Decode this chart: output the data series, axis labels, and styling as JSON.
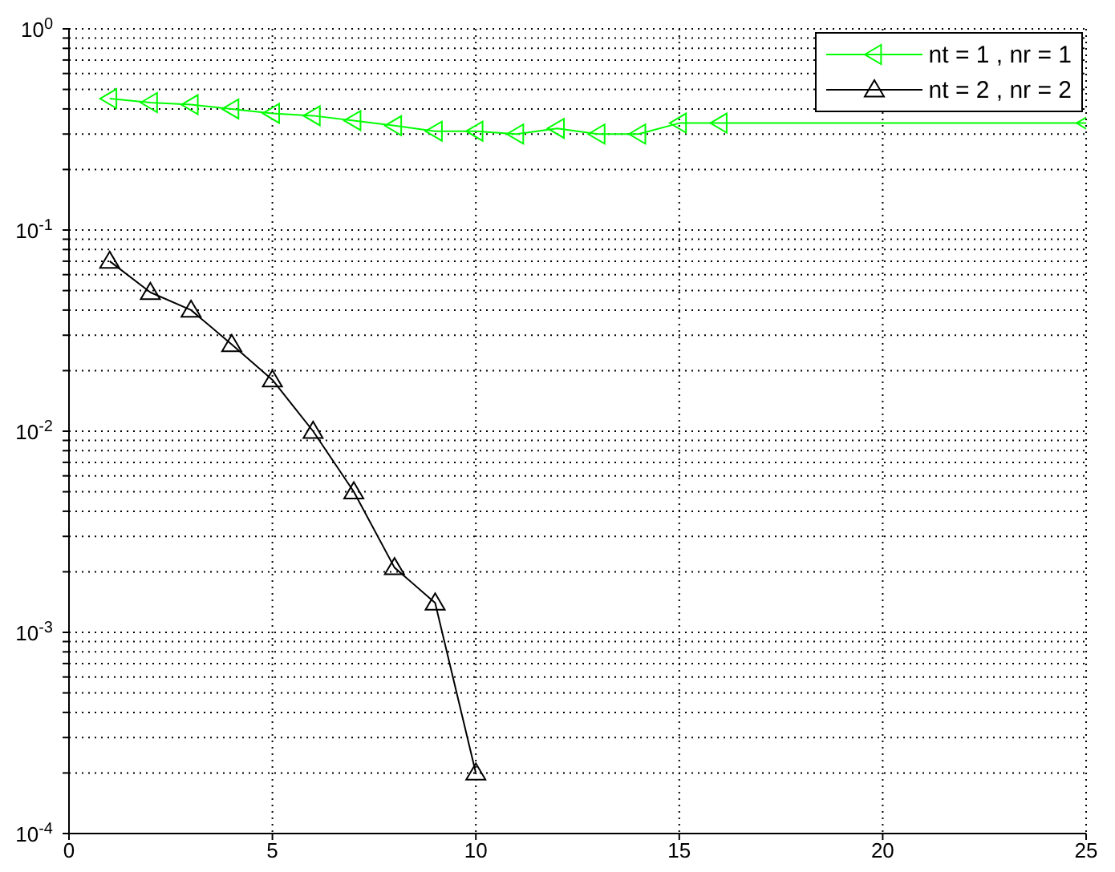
{
  "chart_data": {
    "type": "line",
    "x": [
      1,
      2,
      3,
      4,
      5,
      6,
      7,
      8,
      9,
      10,
      11,
      12,
      13,
      14,
      15,
      16,
      17,
      18,
      19,
      20,
      21,
      22,
      23,
      24,
      25
    ],
    "series": [
      {
        "name": "nt = 1 , nr = 1",
        "color": "#00ff00",
        "marker": "triangle-left",
        "values": [
          0.45,
          0.43,
          0.42,
          0.4,
          0.38,
          0.37,
          0.35,
          0.33,
          0.31,
          0.31,
          0.3,
          0.32,
          0.3,
          0.3,
          0.34,
          0.34,
          null,
          null,
          null,
          null,
          null,
          null,
          null,
          null,
          0.34
        ]
      },
      {
        "name": "nt = 2 , nr = 2",
        "color": "#000000",
        "marker": "triangle",
        "values": [
          0.07,
          0.049,
          0.04,
          0.027,
          0.018,
          0.01,
          0.005,
          0.0021,
          0.0014,
          0.0002,
          null,
          null,
          null,
          null,
          null,
          null,
          null,
          null,
          null,
          null,
          null,
          null,
          null,
          null,
          null
        ]
      }
    ],
    "log": "y",
    "xlim": [
      0,
      25
    ],
    "xticks": [
      0,
      5,
      10,
      15,
      20,
      25
    ],
    "ylim": [
      0.0001,
      1
    ],
    "yticks": [
      {
        "value": 0.0001,
        "label": "10$^{-4}$"
      },
      {
        "value": 0.0002,
        "label": null
      },
      {
        "value": 0.0003,
        "label": null
      },
      {
        "value": 0.0004,
        "label": null
      },
      {
        "value": 0.0005,
        "label": null
      },
      {
        "value": 0.0006,
        "label": null
      },
      {
        "value": 0.0007,
        "label": null
      },
      {
        "value": 0.0008,
        "label": null
      },
      {
        "value": 0.0009,
        "label": null
      },
      {
        "value": 0.001,
        "label": "10$^{-3}$"
      },
      {
        "value": 0.002,
        "label": null
      },
      {
        "value": 0.003,
        "label": null
      },
      {
        "value": 0.004,
        "label": null
      },
      {
        "value": 0.005,
        "label": null
      },
      {
        "value": 0.006,
        "label": null
      },
      {
        "value": 0.007,
        "label": null
      },
      {
        "value": 0.008,
        "label": null
      },
      {
        "value": 0.009,
        "label": null
      },
      {
        "value": 0.01,
        "label": "10$^{-2}$"
      },
      {
        "value": 0.02,
        "label": null
      },
      {
        "value": 0.03,
        "label": null
      },
      {
        "value": 0.04,
        "label": null
      },
      {
        "value": 0.05,
        "label": null
      },
      {
        "value": 0.06,
        "label": null
      },
      {
        "value": 0.07,
        "label": null
      },
      {
        "value": 0.08,
        "label": null
      },
      {
        "value": 0.09,
        "label": null
      },
      {
        "value": 0.1,
        "label": "10$^{-1}$"
      },
      {
        "value": 0.2,
        "label": null
      },
      {
        "value": 0.3,
        "label": null
      },
      {
        "value": 0.4,
        "label": null
      },
      {
        "value": 0.5,
        "label": null
      },
      {
        "value": 0.6,
        "label": null
      },
      {
        "value": 0.7,
        "label": null
      },
      {
        "value": 0.8,
        "label": null
      },
      {
        "value": 0.9,
        "label": null
      },
      {
        "value": 1,
        "label": "10$^{0}$"
      }
    ],
    "grid": true,
    "legend": "top right",
    "line_style": "solid"
  }
}
